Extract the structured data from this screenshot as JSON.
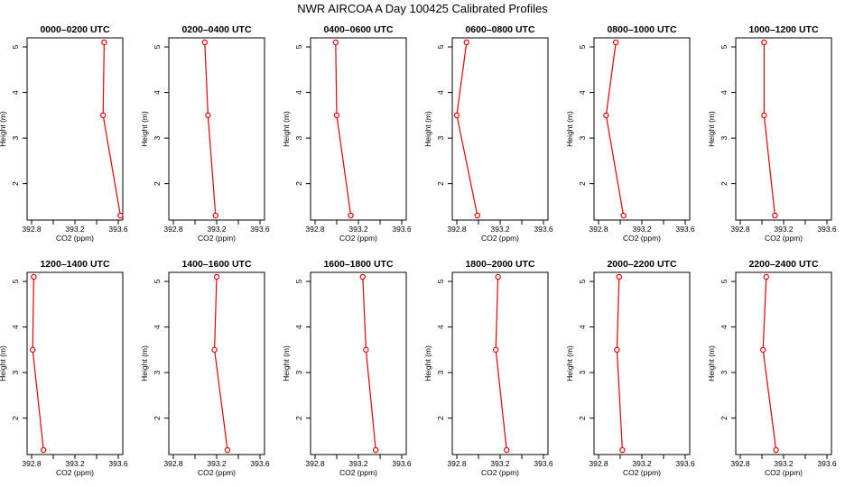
{
  "title": "NWR AIRCOA A  Day 100425  Calibrated Profiles",
  "chart_data": [
    {
      "type": "line",
      "title": "0000–0200 UTC",
      "xlabel": "CO2 (ppm)",
      "ylabel": "Height (m)",
      "xlim": [
        392.8,
        393.6
      ],
      "xticks": [
        "392.8",
        "393.2",
        "393.6"
      ],
      "ylim": [
        1.3,
        5.1
      ],
      "yticks": [
        "2",
        "3",
        "4",
        "5"
      ],
      "grid": false,
      "series": [
        {
          "x": [
            393.47,
            393.46,
            393.62
          ],
          "y": [
            5.1,
            3.5,
            1.3
          ]
        }
      ],
      "color": "#e00000"
    },
    {
      "type": "line",
      "title": "0200–0400 UTC",
      "xlabel": "CO2 (ppm)",
      "ylabel": "Height (m)",
      "xlim": [
        392.8,
        393.6
      ],
      "xticks": [
        "392.8",
        "393.2",
        "393.6"
      ],
      "ylim": [
        1.3,
        5.1
      ],
      "yticks": [
        "2",
        "3",
        "4",
        "5"
      ],
      "grid": false,
      "series": [
        {
          "x": [
            393.09,
            393.12,
            393.19
          ],
          "y": [
            5.1,
            3.5,
            1.3
          ]
        }
      ],
      "color": "#e00000"
    },
    {
      "type": "line",
      "title": "0400–0600 UTC",
      "xlabel": "CO2 (ppm)",
      "ylabel": "Height (m)",
      "xlim": [
        392.8,
        393.6
      ],
      "xticks": [
        "392.8",
        "393.2",
        "393.6"
      ],
      "ylim": [
        1.3,
        5.1
      ],
      "yticks": [
        "2",
        "3",
        "4",
        "5"
      ],
      "grid": false,
      "series": [
        {
          "x": [
            392.99,
            393.0,
            393.13
          ],
          "y": [
            5.1,
            3.5,
            1.3
          ]
        }
      ],
      "color": "#e00000"
    },
    {
      "type": "line",
      "title": "0600–0800 UTC",
      "xlabel": "CO2 (ppm)",
      "ylabel": "Height (m)",
      "xlim": [
        392.8,
        393.6
      ],
      "xticks": [
        "392.8",
        "393.2",
        "393.6"
      ],
      "ylim": [
        1.3,
        5.1
      ],
      "yticks": [
        "2",
        "3",
        "4",
        "5"
      ],
      "grid": false,
      "series": [
        {
          "x": [
            392.89,
            392.8,
            392.99
          ],
          "y": [
            5.1,
            3.5,
            1.3
          ]
        }
      ],
      "color": "#e00000"
    },
    {
      "type": "line",
      "title": "0800–1000 UTC",
      "xlabel": "CO2 (ppm)",
      "ylabel": "Height (m)",
      "xlim": [
        392.8,
        393.6
      ],
      "xticks": [
        "392.8",
        "393.2",
        "393.6"
      ],
      "ylim": [
        1.3,
        5.1
      ],
      "yticks": [
        "2",
        "3",
        "4",
        "5"
      ],
      "grid": false,
      "series": [
        {
          "x": [
            392.96,
            392.87,
            393.03
          ],
          "y": [
            5.1,
            3.5,
            1.3
          ]
        }
      ],
      "color": "#e00000"
    },
    {
      "type": "line",
      "title": "1000–1200 UTC",
      "xlabel": "CO2 (ppm)",
      "ylabel": "Height (m)",
      "xlim": [
        392.8,
        393.6
      ],
      "xticks": [
        "392.8",
        "393.2",
        "393.6"
      ],
      "ylim": [
        1.3,
        5.1
      ],
      "yticks": [
        "2",
        "3",
        "4",
        "5"
      ],
      "grid": false,
      "series": [
        {
          "x": [
            393.02,
            393.02,
            393.12
          ],
          "y": [
            5.1,
            3.5,
            1.3
          ]
        }
      ],
      "color": "#e00000"
    },
    {
      "type": "line",
      "title": "1200–1400 UTC",
      "xlabel": "CO2 (ppm)",
      "ylabel": "Height (m)",
      "xlim": [
        392.8,
        393.6
      ],
      "xticks": [
        "392.8",
        "393.2",
        "393.6"
      ],
      "ylim": [
        1.3,
        5.1
      ],
      "yticks": [
        "2",
        "3",
        "4",
        "5"
      ],
      "grid": false,
      "series": [
        {
          "x": [
            392.82,
            392.81,
            392.91
          ],
          "y": [
            5.1,
            3.5,
            1.3
          ]
        }
      ],
      "color": "#e00000"
    },
    {
      "type": "line",
      "title": "1400–1600 UTC",
      "xlabel": "CO2 (ppm)",
      "ylabel": "Height (m)",
      "xlim": [
        392.8,
        393.6
      ],
      "xticks": [
        "392.8",
        "393.2",
        "393.6"
      ],
      "ylim": [
        1.3,
        5.1
      ],
      "yticks": [
        "2",
        "3",
        "4",
        "5"
      ],
      "grid": false,
      "series": [
        {
          "x": [
            393.2,
            393.18,
            393.3
          ],
          "y": [
            5.1,
            3.5,
            1.3
          ]
        }
      ],
      "color": "#e00000"
    },
    {
      "type": "line",
      "title": "1600–1800 UTC",
      "xlabel": "CO2 (ppm)",
      "ylabel": "Height (m)",
      "xlim": [
        392.8,
        393.6
      ],
      "xticks": [
        "392.8",
        "393.2",
        "393.6"
      ],
      "ylim": [
        1.3,
        5.1
      ],
      "yticks": [
        "2",
        "3",
        "4",
        "5"
      ],
      "grid": false,
      "series": [
        {
          "x": [
            393.24,
            393.27,
            393.36
          ],
          "y": [
            5.1,
            3.5,
            1.3
          ]
        }
      ],
      "color": "#e00000"
    },
    {
      "type": "line",
      "title": "1800–2000 UTC",
      "xlabel": "CO2 (ppm)",
      "ylabel": "Height (m)",
      "xlim": [
        392.8,
        393.6
      ],
      "xticks": [
        "392.8",
        "393.2",
        "393.6"
      ],
      "ylim": [
        1.3,
        5.1
      ],
      "yticks": [
        "2",
        "3",
        "4",
        "5"
      ],
      "grid": false,
      "series": [
        {
          "x": [
            393.18,
            393.16,
            393.26
          ],
          "y": [
            5.1,
            3.5,
            1.3
          ]
        }
      ],
      "color": "#e00000"
    },
    {
      "type": "line",
      "title": "2000–2200 UTC",
      "xlabel": "CO2 (ppm)",
      "ylabel": "Height (m)",
      "xlim": [
        392.8,
        393.6
      ],
      "xticks": [
        "392.8",
        "393.2",
        "393.6"
      ],
      "ylim": [
        1.3,
        5.1
      ],
      "yticks": [
        "2",
        "3",
        "4",
        "5"
      ],
      "grid": false,
      "series": [
        {
          "x": [
            392.99,
            392.97,
            393.02
          ],
          "y": [
            5.1,
            3.5,
            1.3
          ]
        }
      ],
      "color": "#e00000"
    },
    {
      "type": "line",
      "title": "2200–2400 UTC",
      "xlabel": "CO2 (ppm)",
      "ylabel": "Height (m)",
      "xlim": [
        392.8,
        393.6
      ],
      "xticks": [
        "392.8",
        "393.2",
        "393.6"
      ],
      "ylim": [
        1.3,
        5.1
      ],
      "yticks": [
        "2",
        "3",
        "4",
        "5"
      ],
      "grid": false,
      "series": [
        {
          "x": [
            393.04,
            393.01,
            393.13
          ],
          "y": [
            5.1,
            3.5,
            1.3
          ]
        }
      ],
      "color": "#e00000"
    }
  ]
}
